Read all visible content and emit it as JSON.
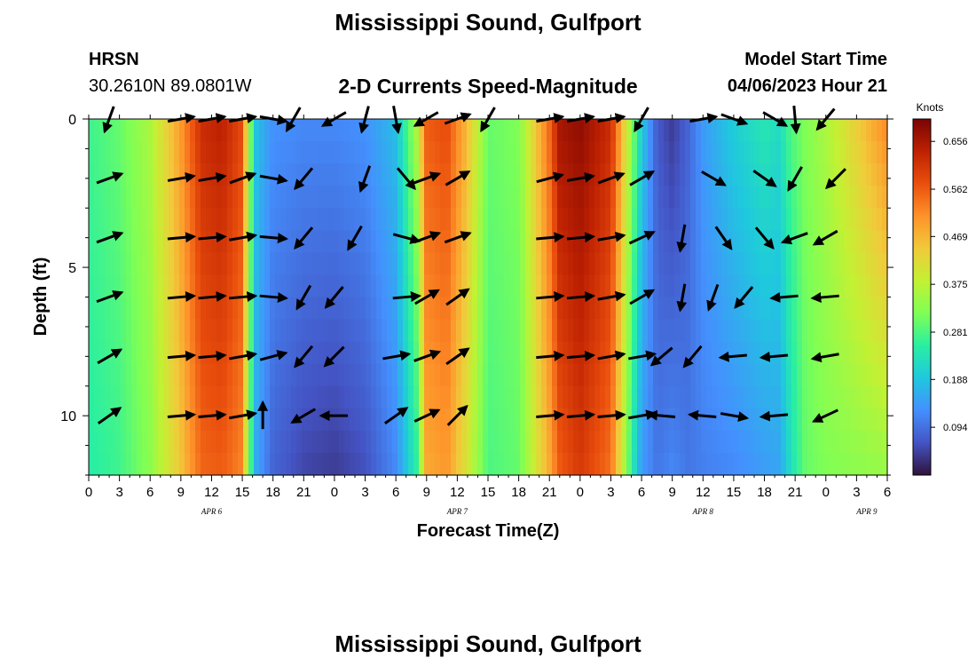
{
  "header": {
    "title": "Mississippi Sound, Gulfport",
    "station_code": "HRSN",
    "station_coords": "30.2610N  89.0801W",
    "subtitle": "2-D Currents Speed-Magnitude",
    "model_start_label": "Model Start Time",
    "model_start_value": "04/06/2023 Hour 21"
  },
  "footer": {
    "title": "Mississippi Sound, Gulfport"
  },
  "chart_data": {
    "type": "heatmap",
    "title": "2-D Currents Speed-Magnitude",
    "xlabel": "Forecast Time(Z)",
    "ylabel": "Depth (ft)",
    "xlim_hours": [
      0,
      78
    ],
    "ylim_ft": [
      0,
      12
    ],
    "x_ticks": [
      {
        "h": 0,
        "label": "0"
      },
      {
        "h": 3,
        "label": "3"
      },
      {
        "h": 6,
        "label": "6"
      },
      {
        "h": 9,
        "label": "9"
      },
      {
        "h": 12,
        "label": "12"
      },
      {
        "h": 15,
        "label": "15"
      },
      {
        "h": 18,
        "label": "18"
      },
      {
        "h": 21,
        "label": "21"
      },
      {
        "h": 24,
        "label": "0"
      },
      {
        "h": 27,
        "label": "3"
      },
      {
        "h": 30,
        "label": "6"
      },
      {
        "h": 33,
        "label": "9"
      },
      {
        "h": 36,
        "label": "12"
      },
      {
        "h": 39,
        "label": "15"
      },
      {
        "h": 42,
        "label": "18"
      },
      {
        "h": 45,
        "label": "21"
      },
      {
        "h": 48,
        "label": "0"
      },
      {
        "h": 51,
        "label": "3"
      },
      {
        "h": 54,
        "label": "6"
      },
      {
        "h": 57,
        "label": "9"
      },
      {
        "h": 60,
        "label": "12"
      },
      {
        "h": 63,
        "label": "15"
      },
      {
        "h": 66,
        "label": "18"
      },
      {
        "h": 69,
        "label": "21"
      },
      {
        "h": 72,
        "label": "0"
      },
      {
        "h": 75,
        "label": "3"
      },
      {
        "h": 78,
        "label": "6"
      }
    ],
    "y_ticks": [
      {
        "ft": 0,
        "label": "0"
      },
      {
        "ft": 5,
        "label": "5"
      },
      {
        "ft": 10,
        "label": "10"
      }
    ],
    "date_labels": [
      {
        "h": 12,
        "label": "APR 6"
      },
      {
        "h": 36,
        "label": "APR 7"
      },
      {
        "h": 60,
        "label": "APR 8"
      },
      {
        "h": 76,
        "label": "APR 9"
      }
    ],
    "colorbar": {
      "unit": "Knots",
      "min": 0.0,
      "max": 0.7,
      "ticks": [
        "0.656",
        "0.562",
        "0.469",
        "0.375",
        "0.281",
        "0.188",
        "0.094"
      ],
      "tick_values": [
        0.656,
        0.562,
        0.469,
        0.375,
        0.281,
        0.188,
        0.094
      ],
      "colors": [
        "#30123b",
        "#4454c4",
        "#4490fe",
        "#1fc8de",
        "#29efa2",
        "#7eff55",
        "#c3f133",
        "#f1ca3a",
        "#fe922a",
        "#ea4f0d",
        "#be2102",
        "#7a0403"
      ]
    },
    "speed_profile": {
      "hours": [
        0,
        3,
        6,
        9,
        11,
        13,
        15,
        15.6,
        16.4,
        18,
        21,
        24,
        27,
        30,
        32,
        33,
        35,
        37,
        39,
        42,
        45,
        46,
        48,
        51,
        53,
        54,
        55.5,
        57,
        58.5,
        60,
        63,
        66,
        67.5,
        68.5,
        70,
        72,
        75,
        78
      ],
      "surface_knots": [
        0.27,
        0.3,
        0.36,
        0.5,
        0.62,
        0.64,
        0.58,
        0.36,
        0.18,
        0.13,
        0.12,
        0.12,
        0.13,
        0.18,
        0.36,
        0.56,
        0.58,
        0.46,
        0.3,
        0.32,
        0.55,
        0.66,
        0.68,
        0.62,
        0.34,
        0.2,
        0.07,
        0.04,
        0.08,
        0.14,
        0.2,
        0.24,
        0.22,
        0.28,
        0.32,
        0.36,
        0.44,
        0.52
      ],
      "bottom_knots": [
        0.25,
        0.27,
        0.33,
        0.45,
        0.55,
        0.56,
        0.52,
        0.32,
        0.15,
        0.08,
        0.05,
        0.04,
        0.06,
        0.12,
        0.25,
        0.48,
        0.5,
        0.4,
        0.28,
        0.3,
        0.48,
        0.56,
        0.6,
        0.54,
        0.26,
        0.14,
        0.1,
        0.12,
        0.1,
        0.11,
        0.12,
        0.14,
        0.15,
        0.22,
        0.3,
        0.32,
        0.33,
        0.34
      ]
    },
    "vectors": [
      {
        "h": 2,
        "ft": 0,
        "dir": 200
      },
      {
        "h": 9,
        "ft": 0,
        "dir": 80
      },
      {
        "h": 12,
        "ft": 0,
        "dir": 80
      },
      {
        "h": 15,
        "ft": 0,
        "dir": 80
      },
      {
        "h": 18,
        "ft": 0,
        "dir": 100
      },
      {
        "h": 20,
        "ft": 0,
        "dir": 210
      },
      {
        "h": 24,
        "ft": 0,
        "dir": 240
      },
      {
        "h": 27,
        "ft": 0,
        "dir": 195
      },
      {
        "h": 30,
        "ft": 0,
        "dir": 170
      },
      {
        "h": 33,
        "ft": 0,
        "dir": 240
      },
      {
        "h": 36,
        "ft": 0,
        "dir": 70
      },
      {
        "h": 39,
        "ft": 0,
        "dir": 210
      },
      {
        "h": 45,
        "ft": 0,
        "dir": 80
      },
      {
        "h": 48,
        "ft": 0,
        "dir": 80
      },
      {
        "h": 51,
        "ft": 0,
        "dir": 80
      },
      {
        "h": 54,
        "ft": 0,
        "dir": 210
      },
      {
        "h": 60,
        "ft": 0,
        "dir": 80
      },
      {
        "h": 63,
        "ft": 0,
        "dir": 110
      },
      {
        "h": 67,
        "ft": 0,
        "dir": 120
      },
      {
        "h": 69,
        "ft": 0,
        "dir": 175
      },
      {
        "h": 72,
        "ft": 0,
        "dir": 220
      },
      {
        "h": 2,
        "ft": 2,
        "dir": 70
      },
      {
        "h": 9,
        "ft": 2,
        "dir": 80
      },
      {
        "h": 12,
        "ft": 2,
        "dir": 80
      },
      {
        "h": 15,
        "ft": 2,
        "dir": 70
      },
      {
        "h": 18,
        "ft": 2,
        "dir": 100
      },
      {
        "h": 21,
        "ft": 2,
        "dir": 220
      },
      {
        "h": 27,
        "ft": 2,
        "dir": 200
      },
      {
        "h": 31,
        "ft": 2,
        "dir": 140
      },
      {
        "h": 33,
        "ft": 2,
        "dir": 70
      },
      {
        "h": 36,
        "ft": 2,
        "dir": 60
      },
      {
        "h": 45,
        "ft": 2,
        "dir": 75
      },
      {
        "h": 48,
        "ft": 2,
        "dir": 80
      },
      {
        "h": 51,
        "ft": 2,
        "dir": 70
      },
      {
        "h": 54,
        "ft": 2,
        "dir": 60
      },
      {
        "h": 61,
        "ft": 2,
        "dir": 120
      },
      {
        "h": 66,
        "ft": 2,
        "dir": 125
      },
      {
        "h": 69,
        "ft": 2,
        "dir": 210
      },
      {
        "h": 73,
        "ft": 2,
        "dir": 225
      },
      {
        "h": 2,
        "ft": 4,
        "dir": 70
      },
      {
        "h": 9,
        "ft": 4,
        "dir": 85
      },
      {
        "h": 12,
        "ft": 4,
        "dir": 85
      },
      {
        "h": 15,
        "ft": 4,
        "dir": 80
      },
      {
        "h": 18,
        "ft": 4,
        "dir": 95
      },
      {
        "h": 21,
        "ft": 4,
        "dir": 220
      },
      {
        "h": 26,
        "ft": 4,
        "dir": 210
      },
      {
        "h": 31,
        "ft": 4,
        "dir": 105
      },
      {
        "h": 33,
        "ft": 4,
        "dir": 70
      },
      {
        "h": 36,
        "ft": 4,
        "dir": 70
      },
      {
        "h": 45,
        "ft": 4,
        "dir": 85
      },
      {
        "h": 48,
        "ft": 4,
        "dir": 85
      },
      {
        "h": 51,
        "ft": 4,
        "dir": 80
      },
      {
        "h": 54,
        "ft": 4,
        "dir": 65
      },
      {
        "h": 58,
        "ft": 4,
        "dir": 190
      },
      {
        "h": 62,
        "ft": 4,
        "dir": 145
      },
      {
        "h": 66,
        "ft": 4,
        "dir": 140
      },
      {
        "h": 69,
        "ft": 4,
        "dir": 250
      },
      {
        "h": 72,
        "ft": 4,
        "dir": 240
      },
      {
        "h": 2,
        "ft": 6,
        "dir": 70
      },
      {
        "h": 9,
        "ft": 6,
        "dir": 85
      },
      {
        "h": 12,
        "ft": 6,
        "dir": 85
      },
      {
        "h": 15,
        "ft": 6,
        "dir": 85
      },
      {
        "h": 18,
        "ft": 6,
        "dir": 95
      },
      {
        "h": 21,
        "ft": 6,
        "dir": 210
      },
      {
        "h": 24,
        "ft": 6,
        "dir": 220
      },
      {
        "h": 31,
        "ft": 6,
        "dir": 85
      },
      {
        "h": 33,
        "ft": 6,
        "dir": 60
      },
      {
        "h": 36,
        "ft": 6,
        "dir": 55
      },
      {
        "h": 45,
        "ft": 6,
        "dir": 85
      },
      {
        "h": 48,
        "ft": 6,
        "dir": 85
      },
      {
        "h": 51,
        "ft": 6,
        "dir": 80
      },
      {
        "h": 54,
        "ft": 6,
        "dir": 60
      },
      {
        "h": 58,
        "ft": 6,
        "dir": 190
      },
      {
        "h": 61,
        "ft": 6,
        "dir": 200
      },
      {
        "h": 64,
        "ft": 6,
        "dir": 220
      },
      {
        "h": 68,
        "ft": 6,
        "dir": 265
      },
      {
        "h": 72,
        "ft": 6,
        "dir": 265
      },
      {
        "h": 2,
        "ft": 8,
        "dir": 60
      },
      {
        "h": 9,
        "ft": 8,
        "dir": 85
      },
      {
        "h": 12,
        "ft": 8,
        "dir": 85
      },
      {
        "h": 15,
        "ft": 8,
        "dir": 80
      },
      {
        "h": 18,
        "ft": 8,
        "dir": 75
      },
      {
        "h": 21,
        "ft": 8,
        "dir": 220
      },
      {
        "h": 24,
        "ft": 8,
        "dir": 225
      },
      {
        "h": 30,
        "ft": 8,
        "dir": 80
      },
      {
        "h": 33,
        "ft": 8,
        "dir": 70
      },
      {
        "h": 36,
        "ft": 8,
        "dir": 55
      },
      {
        "h": 45,
        "ft": 8,
        "dir": 85
      },
      {
        "h": 48,
        "ft": 8,
        "dir": 85
      },
      {
        "h": 51,
        "ft": 8,
        "dir": 80
      },
      {
        "h": 54,
        "ft": 8,
        "dir": 80
      },
      {
        "h": 56,
        "ft": 8,
        "dir": 230
      },
      {
        "h": 59,
        "ft": 8,
        "dir": 220
      },
      {
        "h": 63,
        "ft": 8,
        "dir": 265
      },
      {
        "h": 67,
        "ft": 8,
        "dir": 265
      },
      {
        "h": 72,
        "ft": 8,
        "dir": 260
      },
      {
        "h": 2,
        "ft": 10,
        "dir": 55
      },
      {
        "h": 9,
        "ft": 10,
        "dir": 85
      },
      {
        "h": 12,
        "ft": 10,
        "dir": 85
      },
      {
        "h": 15,
        "ft": 10,
        "dir": 80
      },
      {
        "h": 17,
        "ft": 10,
        "dir": 0
      },
      {
        "h": 21,
        "ft": 10,
        "dir": 240
      },
      {
        "h": 24,
        "ft": 10,
        "dir": 270
      },
      {
        "h": 30,
        "ft": 10,
        "dir": 55
      },
      {
        "h": 33,
        "ft": 10,
        "dir": 65
      },
      {
        "h": 36,
        "ft": 10,
        "dir": 45
      },
      {
        "h": 45,
        "ft": 10,
        "dir": 85
      },
      {
        "h": 48,
        "ft": 10,
        "dir": 85
      },
      {
        "h": 51,
        "ft": 10,
        "dir": 85
      },
      {
        "h": 54,
        "ft": 10,
        "dir": 80
      },
      {
        "h": 56,
        "ft": 10,
        "dir": 275
      },
      {
        "h": 60,
        "ft": 10,
        "dir": 275
      },
      {
        "h": 63,
        "ft": 10,
        "dir": 100
      },
      {
        "h": 67,
        "ft": 10,
        "dir": 265
      },
      {
        "h": 72,
        "ft": 10,
        "dir": 245
      }
    ]
  }
}
